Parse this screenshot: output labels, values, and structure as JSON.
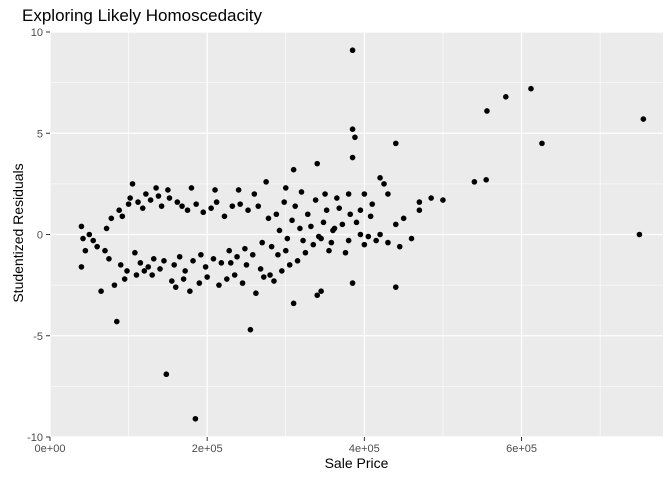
{
  "chart_data": {
    "type": "scatter",
    "title": "Exploring Likely Homoscedacity",
    "xlabel": "Sale Price",
    "ylabel": "Studentized Residuals",
    "xlim": [
      0,
      780000
    ],
    "ylim": [
      -10,
      10
    ],
    "x_ticks": [
      0,
      200000,
      400000,
      600000
    ],
    "x_tick_labels": [
      "0e+00",
      "2e+05",
      "4e+05",
      "6e+05"
    ],
    "y_ticks": [
      -10,
      -5,
      0,
      5,
      10
    ],
    "y_tick_labels": [
      "-10",
      "-5",
      "0",
      "5",
      "10"
    ],
    "grid": true,
    "background": "#EBEBEB",
    "gridline_color": "#FFFFFF",
    "point_color": "#000000",
    "points": [
      [
        385000,
        9.1
      ],
      [
        612000,
        7.2
      ],
      [
        580000,
        6.8
      ],
      [
        556000,
        6.1
      ],
      [
        755000,
        5.7
      ],
      [
        385000,
        5.2
      ],
      [
        388000,
        4.8
      ],
      [
        626000,
        4.5
      ],
      [
        440000,
        4.5
      ],
      [
        385000,
        3.8
      ],
      [
        340000,
        3.5
      ],
      [
        310000,
        3.2
      ],
      [
        555000,
        2.7
      ],
      [
        540000,
        2.6
      ],
      [
        275000,
        2.6
      ],
      [
        420000,
        2.8
      ],
      [
        425000,
        2.5
      ],
      [
        105000,
        2.5
      ],
      [
        135000,
        2.3
      ],
      [
        150000,
        2.2
      ],
      [
        180000,
        2.3
      ],
      [
        210000,
        2.2
      ],
      [
        240000,
        2.2
      ],
      [
        260000,
        2.0
      ],
      [
        300000,
        2.3
      ],
      [
        320000,
        2.1
      ],
      [
        350000,
        2.0
      ],
      [
        380000,
        2.0
      ],
      [
        400000,
        2.0
      ],
      [
        430000,
        2.0
      ],
      [
        485000,
        1.8
      ],
      [
        500000,
        1.7
      ],
      [
        470000,
        1.6
      ],
      [
        365000,
        1.8
      ],
      [
        450000,
        0.8
      ],
      [
        410000,
        1.5
      ],
      [
        395000,
        1.2
      ],
      [
        440000,
        0.5
      ],
      [
        420000,
        0.0
      ],
      [
        445000,
        -0.6
      ],
      [
        470000,
        1.2
      ],
      [
        460000,
        -0.2
      ],
      [
        430000,
        -0.4
      ],
      [
        415000,
        -0.3
      ],
      [
        750000,
        0.0
      ],
      [
        400000,
        -0.5
      ],
      [
        395000,
        0.0
      ],
      [
        380000,
        -0.3
      ],
      [
        360000,
        0.2
      ],
      [
        355000,
        -0.8
      ],
      [
        345000,
        -0.2
      ],
      [
        335000,
        -0.5
      ],
      [
        325000,
        -0.9
      ],
      [
        315000,
        -1.3
      ],
      [
        305000,
        -1.5
      ],
      [
        300000,
        -0.8
      ],
      [
        290000,
        -1.0
      ],
      [
        295000,
        -1.8
      ],
      [
        285000,
        -2.3
      ],
      [
        280000,
        -2.0
      ],
      [
        340000,
        -3.0
      ],
      [
        345000,
        -2.8
      ],
      [
        310000,
        -3.4
      ],
      [
        440000,
        -2.6
      ],
      [
        385000,
        -2.4
      ],
      [
        255000,
        -4.7
      ],
      [
        85000,
        -4.3
      ],
      [
        148000,
        -6.9
      ],
      [
        185000,
        -9.1
      ],
      [
        65000,
        -2.8
      ],
      [
        82000,
        -2.5
      ],
      [
        95000,
        -2.2
      ],
      [
        110000,
        -2.0
      ],
      [
        120000,
        -1.8
      ],
      [
        130000,
        -2.0
      ],
      [
        155000,
        -2.3
      ],
      [
        160000,
        -2.6
      ],
      [
        170000,
        -2.2
      ],
      [
        178000,
        -2.8
      ],
      [
        190000,
        -2.4
      ],
      [
        200000,
        -2.1
      ],
      [
        215000,
        -2.5
      ],
      [
        225000,
        -2.2
      ],
      [
        235000,
        -2.0
      ],
      [
        245000,
        -2.4
      ],
      [
        262000,
        -2.9
      ],
      [
        272000,
        -2.1
      ],
      [
        268000,
        -1.7
      ],
      [
        250000,
        -1.5
      ],
      [
        230000,
        -1.4
      ],
      [
        60000,
        -0.6
      ],
      [
        55000,
        -0.3
      ],
      [
        50000,
        0.0
      ],
      [
        45000,
        -0.8
      ],
      [
        40000,
        -1.6
      ],
      [
        40000,
        0.4
      ],
      [
        42000,
        -0.2
      ],
      [
        70000,
        -0.8
      ],
      [
        72000,
        0.3
      ],
      [
        75000,
        -1.2
      ],
      [
        78000,
        0.8
      ],
      [
        88000,
        1.2
      ],
      [
        90000,
        -1.5
      ],
      [
        92000,
        0.9
      ],
      [
        98000,
        -1.8
      ],
      [
        100000,
        1.5
      ],
      [
        102000,
        1.8
      ],
      [
        108000,
        -0.9
      ],
      [
        112000,
        1.6
      ],
      [
        115000,
        -1.4
      ],
      [
        118000,
        1.3
      ],
      [
        122000,
        2.0
      ],
      [
        125000,
        -1.6
      ],
      [
        128000,
        1.7
      ],
      [
        132000,
        -1.2
      ],
      [
        138000,
        1.9
      ],
      [
        140000,
        -1.7
      ],
      [
        142000,
        1.4
      ],
      [
        145000,
        -1.3
      ],
      [
        152000,
        1.8
      ],
      [
        158000,
        -1.5
      ],
      [
        162000,
        1.6
      ],
      [
        165000,
        -1.1
      ],
      [
        168000,
        1.4
      ],
      [
        172000,
        -1.8
      ],
      [
        175000,
        1.2
      ],
      [
        182000,
        -1.3
      ],
      [
        186000,
        1.5
      ],
      [
        192000,
        -1.0
      ],
      [
        195000,
        1.1
      ],
      [
        198000,
        -1.6
      ],
      [
        205000,
        1.3
      ],
      [
        208000,
        -1.2
      ],
      [
        212000,
        1.6
      ],
      [
        218000,
        -1.4
      ],
      [
        222000,
        0.9
      ],
      [
        228000,
        -0.8
      ],
      [
        232000,
        1.4
      ],
      [
        238000,
        -1.1
      ],
      [
        242000,
        1.5
      ],
      [
        248000,
        -0.7
      ],
      [
        252000,
        1.2
      ],
      [
        258000,
        -1.0
      ],
      [
        265000,
        1.4
      ],
      [
        270000,
        -0.4
      ],
      [
        278000,
        0.8
      ],
      [
        282000,
        -0.6
      ],
      [
        288000,
        1.0
      ],
      [
        292000,
        0.2
      ],
      [
        298000,
        1.6
      ],
      [
        302000,
        -0.2
      ],
      [
        308000,
        0.7
      ],
      [
        312000,
        1.4
      ],
      [
        318000,
        0.3
      ],
      [
        322000,
        -0.3
      ],
      [
        328000,
        1.0
      ],
      [
        332000,
        0.4
      ],
      [
        338000,
        1.7
      ],
      [
        342000,
        -0.1
      ],
      [
        348000,
        0.6
      ],
      [
        352000,
        1.2
      ],
      [
        358000,
        -0.4
      ],
      [
        362000,
        0.3
      ],
      [
        368000,
        1.3
      ],
      [
        372000,
        0.5
      ],
      [
        376000,
        -0.9
      ],
      [
        382000,
        1.0
      ],
      [
        390000,
        0.6
      ],
      [
        405000,
        -0.1
      ],
      [
        408000,
        0.9
      ]
    ]
  }
}
